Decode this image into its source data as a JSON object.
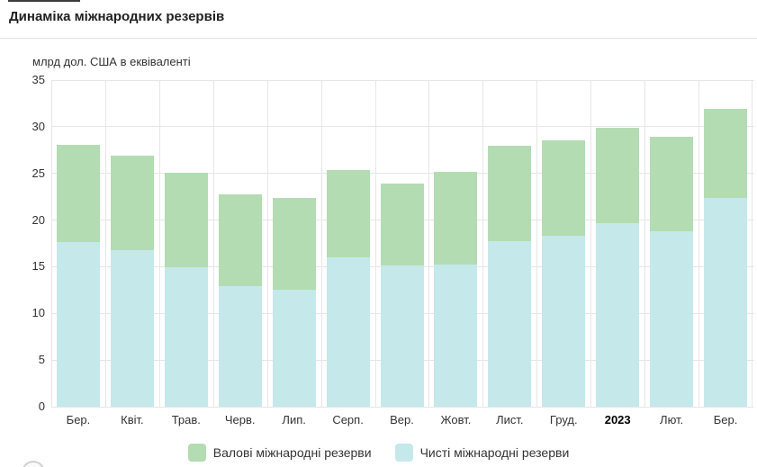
{
  "header": {
    "title": "Динаміка міжнародних резервів"
  },
  "chart_data": {
    "type": "bar",
    "stacked": true,
    "title": "Динаміка міжнародних резервів",
    "ylabel": "млрд дол. США в еквіваленті",
    "xlabel": "",
    "ylim": [
      0,
      35
    ],
    "yticks": [
      0,
      5,
      10,
      15,
      20,
      25,
      30,
      35
    ],
    "grid": true,
    "legend_position": "bottom",
    "categories": [
      "Бер.",
      "Квіт.",
      "Трав.",
      "Черв.",
      "Лип.",
      "Серп.",
      "Вер.",
      "Жовт.",
      "Лист.",
      "Груд.",
      "2023",
      "Лют.",
      "Бер."
    ],
    "emphasized_category": "2023",
    "series": [
      {
        "name": "Валові міжнародні резерви",
        "color": "#b3dcb3",
        "role": "total-bar-top",
        "values": [
          28.1,
          26.9,
          25.1,
          22.8,
          22.4,
          25.4,
          23.9,
          25.2,
          28.0,
          28.5,
          29.9,
          28.9,
          31.9
        ]
      },
      {
        "name": "Чисті міжнародні резерви",
        "color": "#c5e8eb",
        "role": "inner-bar-top",
        "values": [
          17.6,
          16.8,
          14.9,
          12.9,
          12.5,
          16.0,
          15.1,
          15.2,
          17.7,
          18.3,
          19.7,
          18.8,
          22.4
        ]
      }
    ]
  },
  "colors": {
    "gross_green": "#b3dcb3",
    "net_blue": "#c5e8eb",
    "gridline": "#e6e6e6",
    "text": "#333333",
    "divider": "#e2e2e2"
  }
}
